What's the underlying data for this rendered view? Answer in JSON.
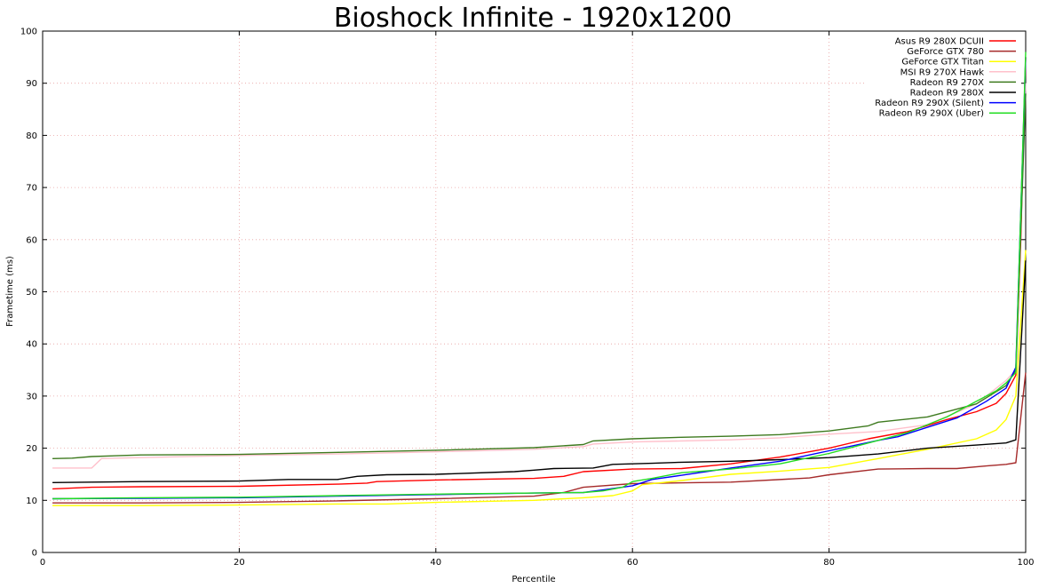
{
  "chart_data": {
    "type": "line",
    "title": "Bioshock Infinite - 1920x1200",
    "xlabel": "Percentile",
    "ylabel": "Frametime (ms)",
    "xlim": [
      0,
      100
    ],
    "ylim": [
      0,
      100
    ],
    "x_ticks": [
      "0",
      "20",
      "40",
      "60",
      "80",
      "100"
    ],
    "y_ticks": [
      "0",
      "10",
      "20",
      "30",
      "40",
      "50",
      "60",
      "70",
      "80",
      "90",
      "100"
    ],
    "grid": true,
    "legend_position": "top-right",
    "series": [
      {
        "name": "Asus R9 280X DCUII",
        "color": "#ff0000",
        "points": [
          [
            1,
            12.2
          ],
          [
            5,
            12.5
          ],
          [
            10,
            12.6
          ],
          [
            20,
            12.7
          ],
          [
            30,
            13.1
          ],
          [
            33,
            13.3
          ],
          [
            34,
            13.6
          ],
          [
            40,
            13.9
          ],
          [
            50,
            14.2
          ],
          [
            53,
            14.6
          ],
          [
            55,
            15.5
          ],
          [
            60,
            16.0
          ],
          [
            65,
            16.1
          ],
          [
            70,
            17.0
          ],
          [
            75,
            18.3
          ],
          [
            80,
            20.0
          ],
          [
            84,
            21.8
          ],
          [
            88,
            23.2
          ],
          [
            92,
            25.5
          ],
          [
            95,
            27.0
          ],
          [
            97,
            28.6
          ],
          [
            98,
            30.5
          ],
          [
            99,
            34.0
          ],
          [
            99.5,
            60
          ],
          [
            100,
            95
          ]
        ]
      },
      {
        "name": "GeForce GTX 780",
        "color": "#a52a2a",
        "points": [
          [
            1,
            9.5
          ],
          [
            10,
            9.5
          ],
          [
            20,
            9.6
          ],
          [
            30,
            9.9
          ],
          [
            40,
            10.3
          ],
          [
            50,
            10.8
          ],
          [
            53,
            11.5
          ],
          [
            55,
            12.5
          ],
          [
            60,
            13.2
          ],
          [
            70,
            13.5
          ],
          [
            78,
            14.3
          ],
          [
            80,
            14.9
          ],
          [
            85,
            16.0
          ],
          [
            90,
            16.1
          ],
          [
            93,
            16.1
          ],
          [
            96,
            16.6
          ],
          [
            98,
            16.9
          ],
          [
            99,
            17.2
          ],
          [
            100,
            34.5
          ]
        ]
      },
      {
        "name": "GeForce GTX Titan",
        "color": "#ffff00",
        "points": [
          [
            1,
            9.0
          ],
          [
            10,
            9.0
          ],
          [
            20,
            9.1
          ],
          [
            30,
            9.3
          ],
          [
            35,
            9.3
          ],
          [
            40,
            9.6
          ],
          [
            50,
            10.0
          ],
          [
            55,
            10.5
          ],
          [
            58,
            10.9
          ],
          [
            60,
            11.8
          ],
          [
            61,
            13.0
          ],
          [
            65,
            13.8
          ],
          [
            70,
            15.0
          ],
          [
            75,
            15.6
          ],
          [
            80,
            16.3
          ],
          [
            85,
            18.0
          ],
          [
            90,
            19.8
          ],
          [
            95,
            21.8
          ],
          [
            97,
            23.5
          ],
          [
            98,
            25.5
          ],
          [
            99,
            30
          ],
          [
            100,
            58
          ]
        ]
      },
      {
        "name": "MSI R9 270X Hawk",
        "color": "#ffc0cb",
        "points": [
          [
            1,
            16.2
          ],
          [
            5,
            16.2
          ],
          [
            6,
            18.0
          ],
          [
            10,
            18.2
          ],
          [
            20,
            18.6
          ],
          [
            30,
            18.9
          ],
          [
            40,
            19.3
          ],
          [
            50,
            19.8
          ],
          [
            55,
            20.3
          ],
          [
            56,
            20.8
          ],
          [
            60,
            21.2
          ],
          [
            70,
            21.6
          ],
          [
            75,
            22.0
          ],
          [
            80,
            22.7
          ],
          [
            85,
            23.2
          ],
          [
            90,
            24.5
          ],
          [
            95,
            28.5
          ],
          [
            98,
            33
          ],
          [
            99,
            35
          ],
          [
            100,
            90
          ]
        ]
      },
      {
        "name": "Radeon R9 270X",
        "color": "#3e7a1f",
        "points": [
          [
            1,
            18.0
          ],
          [
            3,
            18.1
          ],
          [
            5,
            18.4
          ],
          [
            10,
            18.7
          ],
          [
            20,
            18.8
          ],
          [
            30,
            19.2
          ],
          [
            40,
            19.6
          ],
          [
            50,
            20.1
          ],
          [
            55,
            20.7
          ],
          [
            56,
            21.4
          ],
          [
            60,
            21.8
          ],
          [
            65,
            22.1
          ],
          [
            70,
            22.3
          ],
          [
            75,
            22.6
          ],
          [
            80,
            23.3
          ],
          [
            84,
            24.3
          ],
          [
            85,
            25.0
          ],
          [
            90,
            26.0
          ],
          [
            95,
            28.5
          ],
          [
            98,
            32
          ],
          [
            99,
            35
          ],
          [
            100,
            88
          ]
        ]
      },
      {
        "name": "Radeon R9 280X",
        "color": "#000000",
        "points": [
          [
            1,
            13.4
          ],
          [
            5,
            13.5
          ],
          [
            10,
            13.6
          ],
          [
            20,
            13.7
          ],
          [
            25,
            14.0
          ],
          [
            30,
            14.0
          ],
          [
            32,
            14.6
          ],
          [
            35,
            14.9
          ],
          [
            40,
            15.0
          ],
          [
            48,
            15.5
          ],
          [
            50,
            15.8
          ],
          [
            52,
            16.1
          ],
          [
            56,
            16.2
          ],
          [
            58,
            16.9
          ],
          [
            62,
            17.1
          ],
          [
            65,
            17.3
          ],
          [
            70,
            17.5
          ],
          [
            75,
            17.8
          ],
          [
            80,
            18.2
          ],
          [
            85,
            18.9
          ],
          [
            90,
            20.0
          ],
          [
            95,
            20.6
          ],
          [
            98,
            21.0
          ],
          [
            99,
            21.6
          ],
          [
            100,
            56
          ]
        ]
      },
      {
        "name": "Radeon R9 290X (Silent)",
        "color": "#0000ff",
        "points": [
          [
            1,
            10.3
          ],
          [
            10,
            10.4
          ],
          [
            20,
            10.5
          ],
          [
            30,
            10.8
          ],
          [
            40,
            11.1
          ],
          [
            50,
            11.4
          ],
          [
            55,
            11.5
          ],
          [
            57,
            12.0
          ],
          [
            60,
            12.8
          ],
          [
            62,
            14.0
          ],
          [
            65,
            14.8
          ],
          [
            70,
            16.2
          ],
          [
            75,
            17.5
          ],
          [
            80,
            19.5
          ],
          [
            85,
            21.5
          ],
          [
            87,
            22.2
          ],
          [
            90,
            24.0
          ],
          [
            93,
            25.8
          ],
          [
            96,
            29.0
          ],
          [
            98,
            31.5
          ],
          [
            99,
            35.5
          ],
          [
            100,
            95
          ]
        ]
      },
      {
        "name": "Radeon R9 290X (Uber)",
        "color": "#22dd22",
        "points": [
          [
            1,
            10.3
          ],
          [
            10,
            10.5
          ],
          [
            20,
            10.6
          ],
          [
            30,
            10.9
          ],
          [
            40,
            11.2
          ],
          [
            50,
            11.4
          ],
          [
            55,
            11.5
          ],
          [
            57,
            11.8
          ],
          [
            59,
            12.5
          ],
          [
            60,
            13.6
          ],
          [
            62,
            14.2
          ],
          [
            65,
            15.3
          ],
          [
            70,
            16.0
          ],
          [
            75,
            17.0
          ],
          [
            80,
            19.0
          ],
          [
            85,
            21.5
          ],
          [
            88,
            23.0
          ],
          [
            92,
            26.0
          ],
          [
            95,
            29.0
          ],
          [
            97,
            31.0
          ],
          [
            98,
            32.5
          ],
          [
            99,
            34.5
          ],
          [
            100,
            96
          ]
        ]
      }
    ]
  }
}
